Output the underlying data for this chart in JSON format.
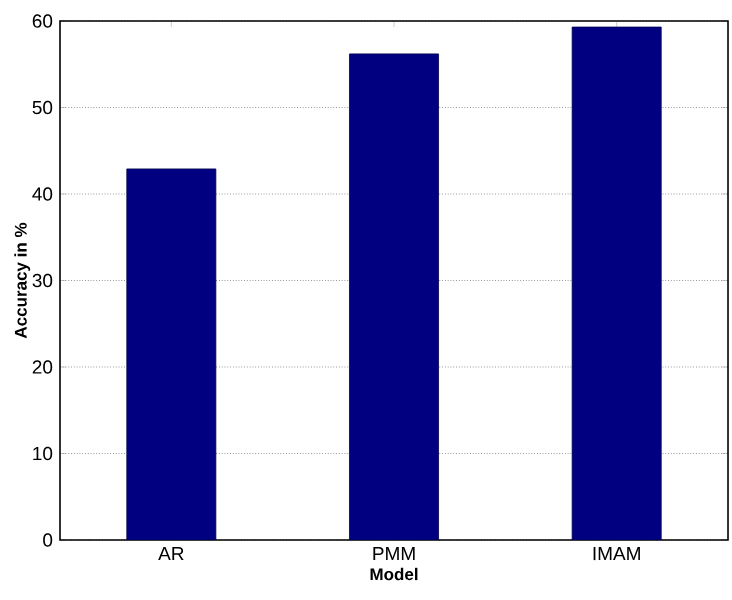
{
  "chart_data": {
    "type": "bar",
    "xlabel": "Model",
    "ylabel": "Accuracy in %",
    "categories": [
      "AR",
      "PMM",
      "IMAM"
    ],
    "values": [
      42.9,
      56.2,
      59.3
    ],
    "color": "#000080",
    "ylim": [
      0,
      60
    ],
    "yticks": [
      0,
      10,
      20,
      30,
      40,
      50,
      60
    ],
    "grid": "y"
  }
}
